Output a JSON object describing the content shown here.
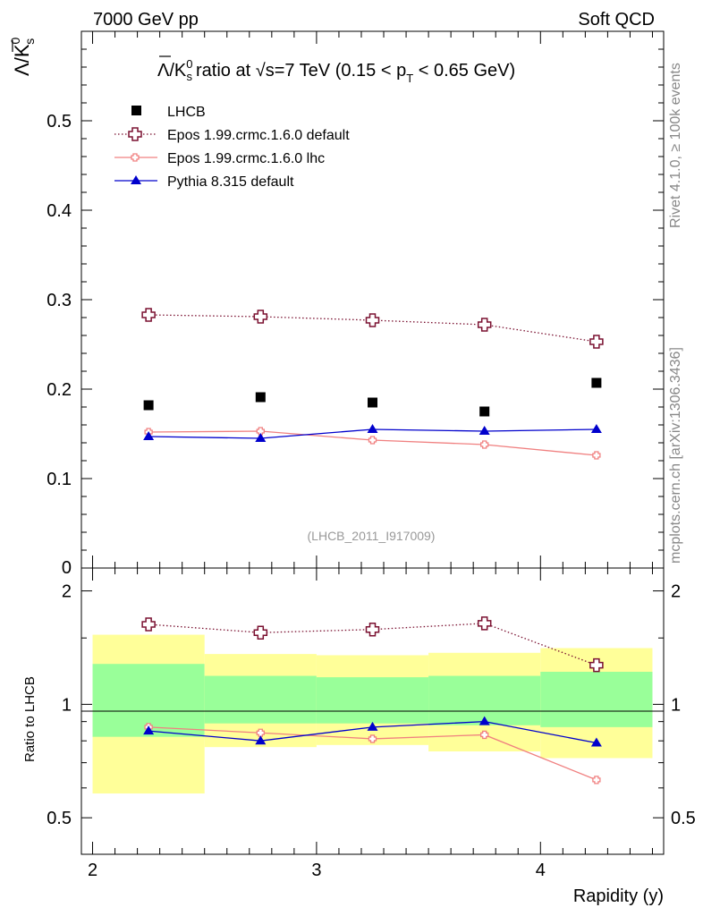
{
  "header": {
    "left": "7000 GeV pp",
    "right": "Soft QCD"
  },
  "side": {
    "top": "Rivet 4.1.0, ≥ 100k events",
    "bottom": "mcplots.cern.ch [arXiv:1306.3436]"
  },
  "chart_data": {
    "type": "line",
    "title": "Λ̅/K⁰ₛ ratio at √s=7 TeV (0.15 < pT < 0.65 GeV)",
    "title_parts": {
      "prefix": "ratio at ",
      "sqrt": "√",
      "s_eq": "s=7 TeV (0.15 < p",
      "sub_T": "T",
      "suffix": " < 0.65 GeV)"
    },
    "ylabel_parts": {
      "lambda": "Λ",
      "slash": "/K",
      "sup": "0",
      "sub": "s"
    },
    "watermark": "(LHCB_2011_I917009)",
    "xlabel": "Rapidity (y)",
    "x": [
      2.25,
      2.75,
      3.25,
      3.75,
      4.25
    ],
    "x_bins": [
      [
        2.0,
        2.5
      ],
      [
        2.5,
        3.0
      ],
      [
        3.0,
        3.5
      ],
      [
        3.5,
        4.0
      ],
      [
        4.0,
        4.5
      ]
    ],
    "xlim": [
      1.95,
      4.55
    ],
    "ylim": [
      0.0,
      0.6
    ],
    "y_ticks": [
      "0.1",
      "0.2",
      "0.3",
      "0.4",
      "0.5"
    ],
    "y_tick_values": [
      0.1,
      0.2,
      0.3,
      0.4,
      0.5
    ],
    "y_zero_label": "0",
    "x_ticks": [
      "2",
      "3",
      "4"
    ],
    "x_tick_values": [
      2,
      3,
      4
    ],
    "data_label": "LHCB",
    "data_values": [
      0.182,
      0.191,
      0.185,
      0.175,
      0.207
    ],
    "series": [
      {
        "name": "Epos 1.99.crmc.1.6.0 default",
        "color": "#7a1030",
        "marker": "open-cross",
        "dash": "dotted",
        "values": [
          0.283,
          0.281,
          0.277,
          0.272,
          0.253
        ]
      },
      {
        "name": "Epos 1.99.crmc.1.6.0 lhc",
        "color": "#f08080",
        "marker": "small-cross",
        "dash": "solid",
        "values": [
          0.152,
          0.153,
          0.143,
          0.138,
          0.126
        ]
      },
      {
        "name": "Pythia 8.315 default",
        "color": "#0000cc",
        "marker": "triangle",
        "dash": "solid",
        "values": [
          0.147,
          0.145,
          0.155,
          0.153,
          0.155
        ]
      }
    ],
    "ratio": {
      "ylabel": "Ratio to LHCB",
      "ylim_log": [
        0.4,
        2.3
      ],
      "ticks": [
        "0.5",
        "1",
        "2"
      ],
      "tick_values": [
        0.5,
        1,
        2
      ],
      "green_band": [
        [
          0.82,
          1.28
        ],
        [
          0.89,
          1.19
        ],
        [
          0.89,
          1.18
        ],
        [
          0.88,
          1.19
        ],
        [
          0.87,
          1.22
        ]
      ],
      "yellow_band": [
        [
          0.58,
          1.53
        ],
        [
          0.77,
          1.36
        ],
        [
          0.78,
          1.35
        ],
        [
          0.75,
          1.37
        ],
        [
          0.72,
          1.41
        ]
      ],
      "series_values": [
        [
          1.63,
          1.55,
          1.58,
          1.64,
          1.27
        ],
        [
          0.87,
          0.84,
          0.81,
          0.83,
          0.63
        ],
        [
          0.85,
          0.8,
          0.87,
          0.9,
          0.79
        ]
      ]
    }
  }
}
